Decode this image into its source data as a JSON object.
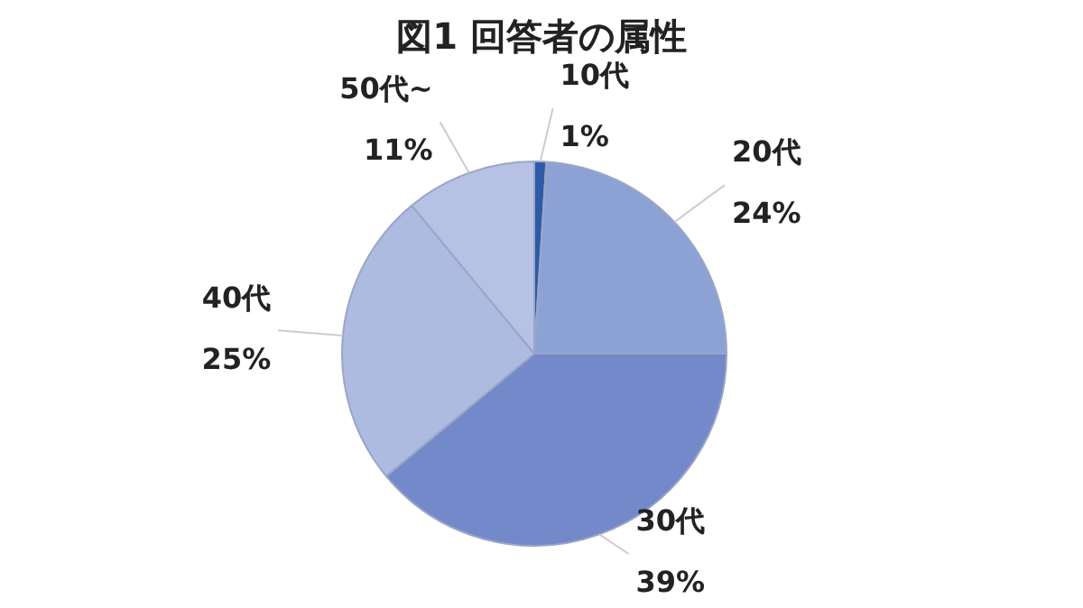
{
  "chart_data": {
    "type": "pie",
    "title": "図1 回答者の属性",
    "categories": [
      "10代",
      "20代",
      "30代",
      "40代",
      "50代~"
    ],
    "values": [
      1,
      24,
      39,
      25,
      11
    ],
    "value_labels": [
      "1%",
      "24%",
      "39%",
      "25%",
      "11%"
    ],
    "colors": [
      "#2f5aa8",
      "#8da2d4",
      "#7389c9",
      "#aebbe0",
      "#b7c1e3"
    ],
    "legend": false
  }
}
